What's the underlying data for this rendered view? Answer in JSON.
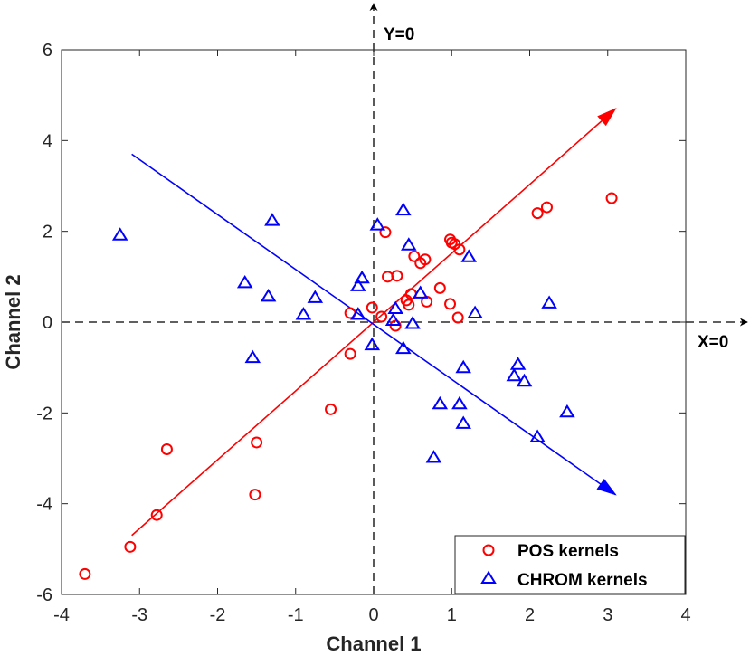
{
  "chart_data": {
    "type": "scatter",
    "title": "",
    "xlabel": "Channel 1",
    "ylabel": "Channel 2",
    "xlim": [
      -4,
      4
    ],
    "ylim": [
      -6,
      6
    ],
    "xticks": [
      -4,
      -3,
      -2,
      -1,
      0,
      1,
      2,
      3,
      4
    ],
    "yticks": [
      -6,
      -4,
      -2,
      0,
      2,
      4,
      6
    ],
    "grid": false,
    "legend_position": "bottom-right",
    "reference_lines": [
      {
        "label": "Y=0",
        "orientation": "vertical",
        "value": 0
      },
      {
        "label": "X=0",
        "orientation": "horizontal",
        "value": 0
      }
    ],
    "series": [
      {
        "name": "POS kernels",
        "marker": "circle",
        "color": "#ff0000",
        "points": [
          [
            -3.7,
            -5.55
          ],
          [
            -3.12,
            -4.95
          ],
          [
            -2.78,
            -4.25
          ],
          [
            -2.65,
            -2.8
          ],
          [
            -1.5,
            -2.65
          ],
          [
            -1.52,
            -3.8
          ],
          [
            -0.55,
            -1.92
          ],
          [
            -0.3,
            -0.7
          ],
          [
            -0.3,
            0.2
          ],
          [
            -0.02,
            0.32
          ],
          [
            0.1,
            0.12
          ],
          [
            0.28,
            -0.08
          ],
          [
            0.42,
            0.48
          ],
          [
            0.45,
            0.38
          ],
          [
            0.48,
            0.62
          ],
          [
            0.15,
            1.98
          ],
          [
            0.18,
            1.0
          ],
          [
            0.3,
            1.02
          ],
          [
            0.52,
            1.45
          ],
          [
            0.6,
            1.3
          ],
          [
            0.66,
            1.38
          ],
          [
            0.68,
            0.45
          ],
          [
            0.85,
            0.75
          ],
          [
            0.98,
            0.4
          ],
          [
            1.08,
            0.1
          ],
          [
            0.98,
            1.82
          ],
          [
            1.0,
            1.75
          ],
          [
            1.04,
            1.72
          ],
          [
            1.1,
            1.6
          ],
          [
            2.1,
            2.4
          ],
          [
            2.22,
            2.53
          ],
          [
            3.05,
            2.73
          ]
        ]
      },
      {
        "name": "CHROM kernels",
        "marker": "triangle",
        "color": "#0000ff",
        "points": [
          [
            -3.25,
            1.9
          ],
          [
            -1.3,
            2.22
          ],
          [
            -1.65,
            0.85
          ],
          [
            -1.35,
            0.55
          ],
          [
            -0.9,
            0.15
          ],
          [
            -0.75,
            0.52
          ],
          [
            -1.55,
            -0.8
          ],
          [
            -0.2,
            0.78
          ],
          [
            -0.15,
            0.95
          ],
          [
            -0.2,
            0.15
          ],
          [
            0.05,
            2.12
          ],
          [
            0.38,
            2.45
          ],
          [
            0.45,
            1.68
          ],
          [
            0.28,
            0.28
          ],
          [
            0.25,
            0.02
          ],
          [
            0.5,
            -0.05
          ],
          [
            0.6,
            0.62
          ],
          [
            1.22,
            1.42
          ],
          [
            1.3,
            0.18
          ],
          [
            2.25,
            0.4
          ],
          [
            -0.02,
            -0.52
          ],
          [
            0.38,
            -0.6
          ],
          [
            1.15,
            -1.02
          ],
          [
            1.85,
            -0.95
          ],
          [
            1.8,
            -1.2
          ],
          [
            1.93,
            -1.32
          ],
          [
            0.85,
            -1.82
          ],
          [
            1.1,
            -1.82
          ],
          [
            1.15,
            -2.25
          ],
          [
            2.48,
            -2.0
          ],
          [
            2.1,
            -2.55
          ],
          [
            0.77,
            -3.0
          ]
        ]
      }
    ],
    "vectors": [
      {
        "color": "#ff0000",
        "from": [
          -3.1,
          -4.7
        ],
        "to": [
          3.1,
          4.7
        ]
      },
      {
        "color": "#0000ff",
        "from": [
          -3.1,
          3.7
        ],
        "to": [
          3.1,
          -3.8
        ]
      }
    ]
  }
}
